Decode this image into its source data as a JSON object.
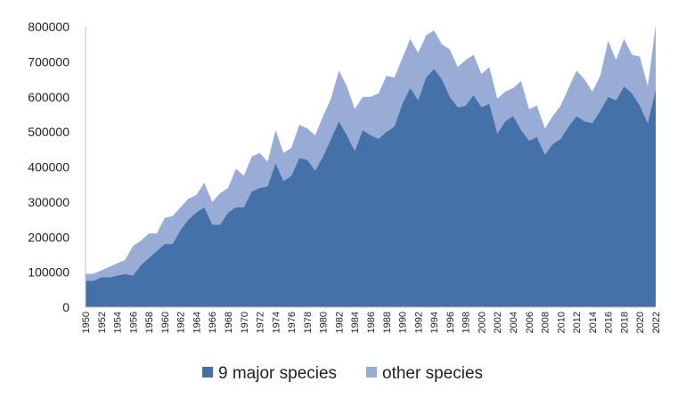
{
  "chart_data": {
    "type": "area",
    "stacked": true,
    "x": [
      1950,
      1951,
      1952,
      1953,
      1954,
      1955,
      1956,
      1957,
      1958,
      1959,
      1960,
      1961,
      1962,
      1963,
      1964,
      1965,
      1966,
      1967,
      1968,
      1969,
      1970,
      1971,
      1972,
      1973,
      1974,
      1975,
      1976,
      1977,
      1978,
      1979,
      1980,
      1981,
      1982,
      1983,
      1984,
      1985,
      1986,
      1987,
      1988,
      1989,
      1990,
      1991,
      1992,
      1993,
      1994,
      1995,
      1996,
      1997,
      1998,
      1999,
      2000,
      2001,
      2002,
      2003,
      2004,
      2005,
      2006,
      2007,
      2008,
      2009,
      2010,
      2011,
      2012,
      2013,
      2014,
      2015,
      2016,
      2017,
      2018,
      2019,
      2020,
      2021,
      2022
    ],
    "x_tick_labels": [
      "1950",
      "1952",
      "1954",
      "1956",
      "1958",
      "1960",
      "1962",
      "1964",
      "1966",
      "1968",
      "1970",
      "1972",
      "1974",
      "1976",
      "1978",
      "1980",
      "1982",
      "1984",
      "1986",
      "1988",
      "1990",
      "1992",
      "1994",
      "1996",
      "1998",
      "2000",
      "2002",
      "2004",
      "2006",
      "2008",
      "2010",
      "2012",
      "2014",
      "2016",
      "2018",
      "2020",
      "2022"
    ],
    "y_ticks": [
      "0",
      "100000",
      "200000",
      "300000",
      "400000",
      "500000",
      "600000",
      "700000",
      "800000"
    ],
    "ylim": [
      0,
      800000
    ],
    "series": [
      {
        "name": "9 major species",
        "color": "#4472a8",
        "values": [
          75000,
          75000,
          85000,
          85000,
          90000,
          95000,
          90000,
          120000,
          140000,
          160000,
          180000,
          180000,
          220000,
          250000,
          270000,
          285000,
          235000,
          235000,
          270000,
          285000,
          285000,
          330000,
          340000,
          345000,
          410000,
          360000,
          375000,
          425000,
          420000,
          390000,
          430000,
          480000,
          530000,
          490000,
          445000,
          505000,
          490000,
          480000,
          500000,
          515000,
          580000,
          625000,
          590000,
          655000,
          680000,
          650000,
          600000,
          570000,
          575000,
          605000,
          570000,
          580000,
          495000,
          530000,
          545000,
          505000,
          475000,
          485000,
          435000,
          465000,
          480000,
          515000,
          545000,
          530000,
          525000,
          560000,
          600000,
          590000,
          630000,
          610000,
          575000,
          525000,
          620000
        ]
      },
      {
        "name": "other species",
        "color": "#99acd6",
        "values": [
          20000,
          20000,
          20000,
          30000,
          35000,
          40000,
          85000,
          70000,
          70000,
          50000,
          75000,
          80000,
          65000,
          60000,
          50000,
          70000,
          65000,
          90000,
          70000,
          110000,
          90000,
          100000,
          100000,
          70000,
          95000,
          80000,
          80000,
          95000,
          90000,
          100000,
          115000,
          115000,
          145000,
          140000,
          120000,
          95000,
          110000,
          130000,
          160000,
          140000,
          130000,
          140000,
          135000,
          120000,
          110000,
          100000,
          135000,
          115000,
          130000,
          115000,
          95000,
          105000,
          100000,
          85000,
          80000,
          140000,
          90000,
          90000,
          75000,
          80000,
          95000,
          110000,
          130000,
          120000,
          90000,
          100000,
          160000,
          115000,
          135000,
          110000,
          140000,
          105000,
          185000
        ]
      }
    ],
    "legend_position": "bottom",
    "grid": false
  }
}
